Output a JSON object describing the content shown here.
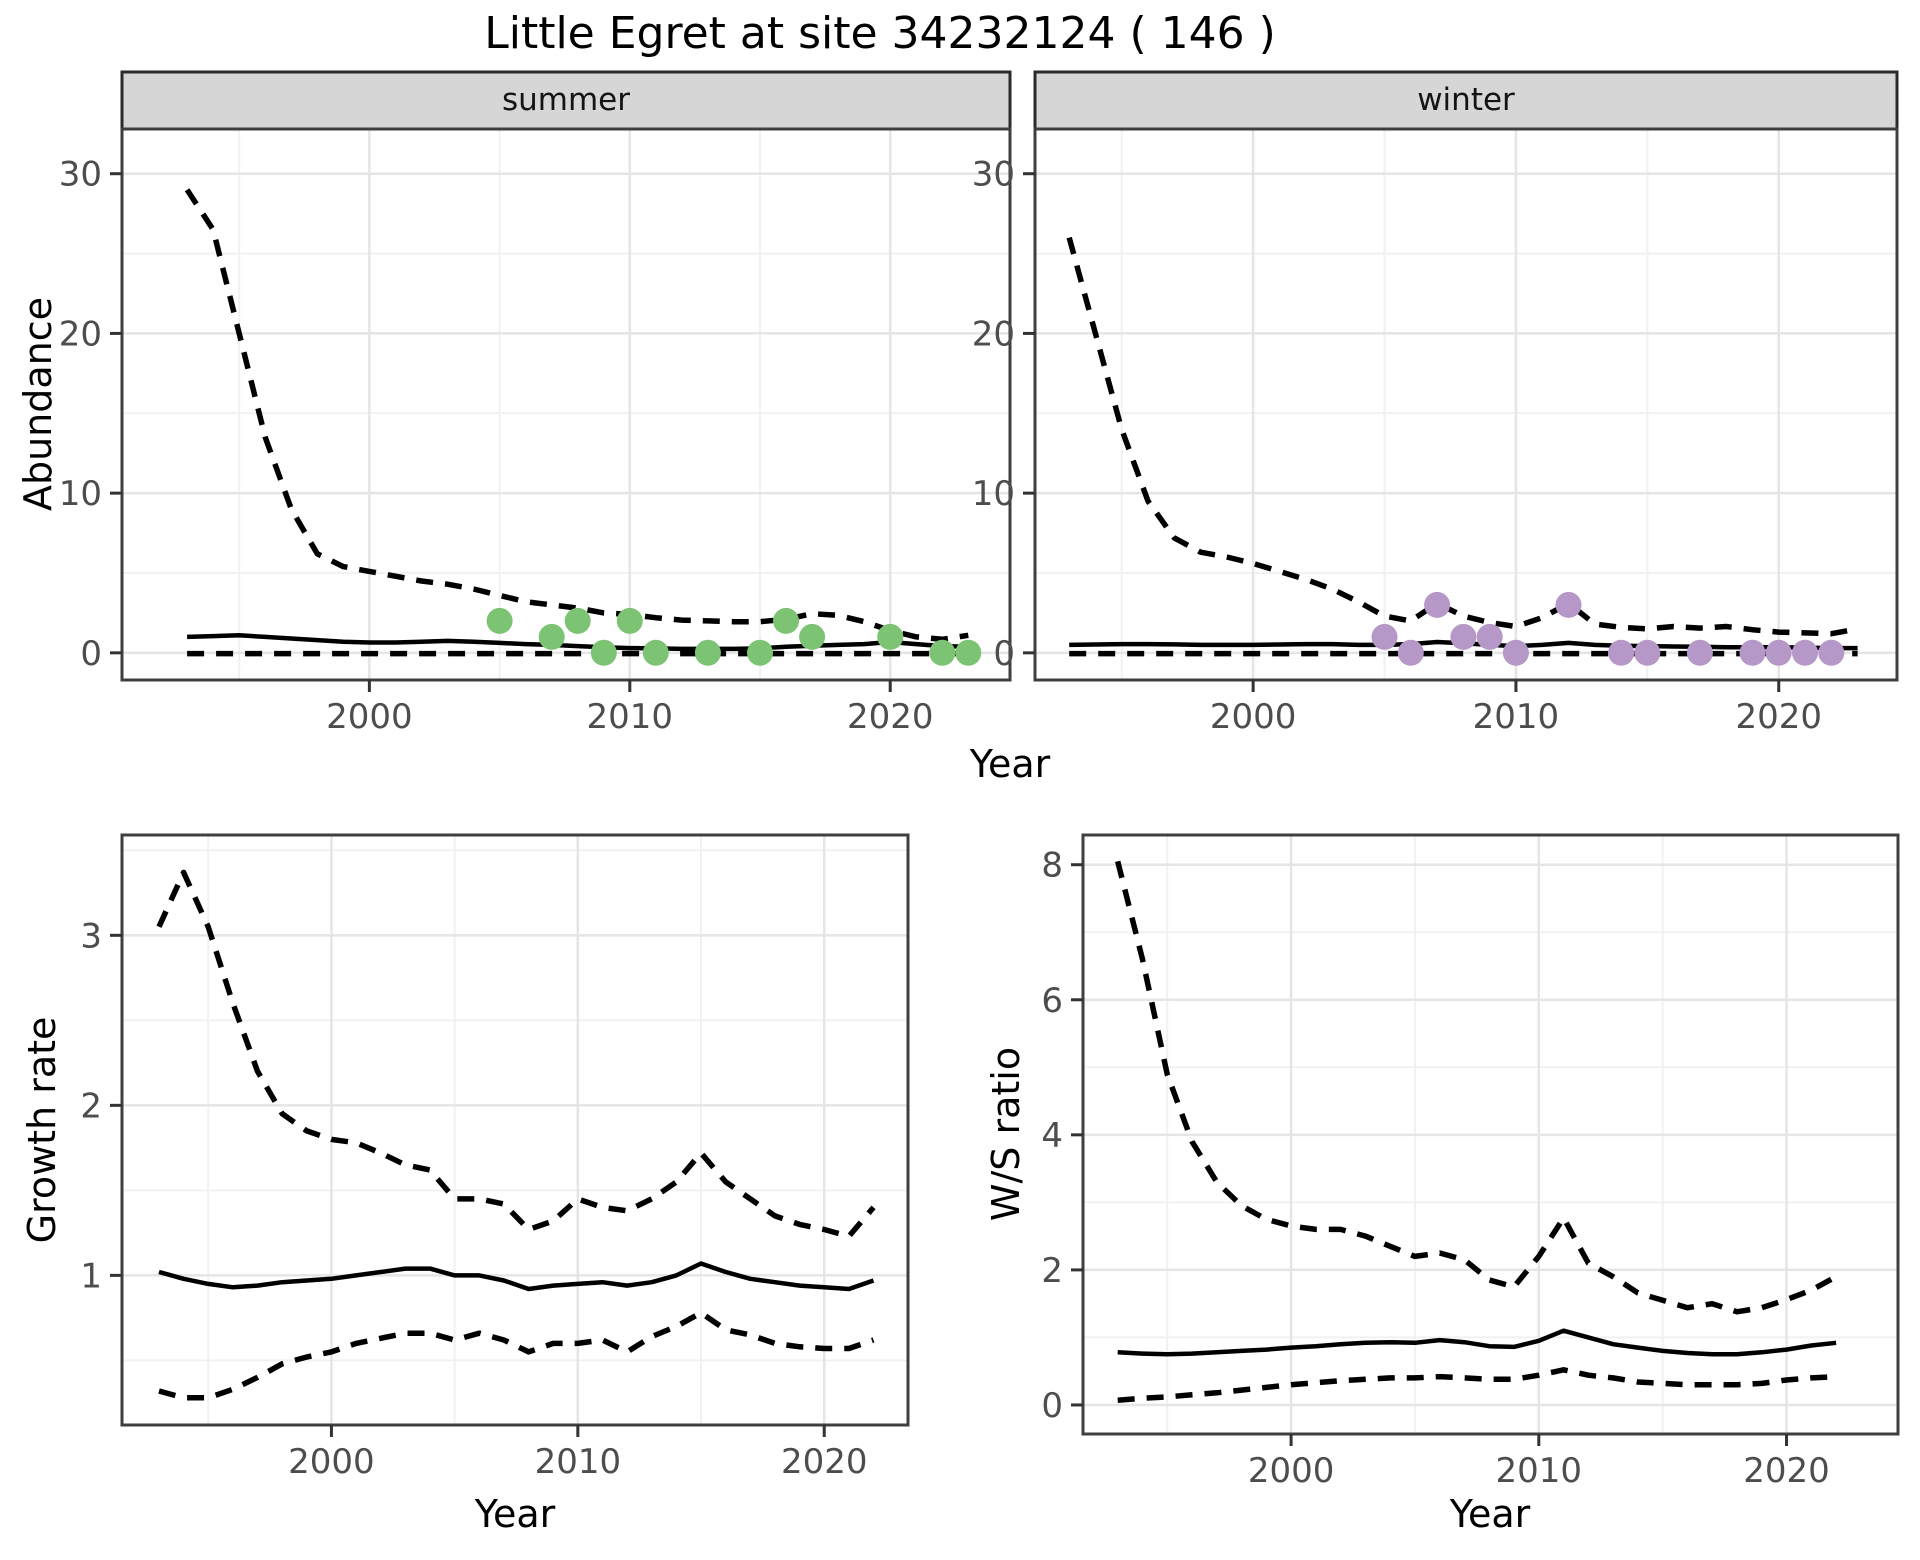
{
  "title": "Little Egret at site 34232124 ( 146 )",
  "strips": {
    "summer": "summer",
    "winter": "winter"
  },
  "axis_titles": {
    "x": "Year",
    "y_abundance": "Abundance",
    "y_growth": "Growth rate",
    "y_ratio": "W/S ratio"
  },
  "colors": {
    "summer_point": "#7cc474",
    "winter_point": "#b597c8",
    "line": "#000000",
    "strip_bg": "#d6d6d6",
    "strip_border": "#2b2b2b",
    "panel_border": "#3f3f3f",
    "grid_major": "#e5e5e5",
    "grid_minor": "#f1f1f1",
    "axis_text": "#4d4d4d",
    "tick_mark": "#333333"
  },
  "chart_data": [
    {
      "type": "line",
      "panel": "summer",
      "facet_label": "summer",
      "xlabel": "Year",
      "ylabel": "Abundance",
      "xlim": [
        1990.5,
        2024.6
      ],
      "ylim": [
        -1.7,
        32.8
      ],
      "x_major": [
        2000,
        2010,
        2020
      ],
      "x_minor": [
        1995,
        2005,
        2015
      ],
      "y_major": [
        0,
        10,
        20,
        30
      ],
      "y_minor": [
        5,
        15,
        25
      ],
      "years": [
        1993,
        1994,
        1995,
        1996,
        1997,
        1998,
        1999,
        2000,
        2001,
        2002,
        2003,
        2004,
        2005,
        2006,
        2007,
        2008,
        2009,
        2010,
        2011,
        2012,
        2013,
        2014,
        2015,
        2016,
        2017,
        2018,
        2019,
        2020,
        2021,
        2022,
        2023
      ],
      "series": [
        {
          "name": "upper_ci",
          "style": "dashed",
          "values": [
            29,
            26.5,
            20,
            13.5,
            9,
            6.2,
            5.4,
            5.1,
            4.8,
            4.5,
            4.3,
            4.0,
            3.6,
            3.2,
            3.0,
            2.8,
            2.5,
            2.4,
            2.2,
            2.05,
            2.0,
            1.95,
            1.95,
            2.1,
            2.45,
            2.35,
            1.95,
            1.4,
            1.0,
            0.85,
            1.1
          ]
        },
        {
          "name": "mean",
          "style": "solid",
          "values": [
            1.0,
            1.05,
            1.1,
            1.0,
            0.9,
            0.8,
            0.7,
            0.65,
            0.65,
            0.7,
            0.75,
            0.7,
            0.62,
            0.55,
            0.5,
            0.42,
            0.35,
            0.3,
            0.28,
            0.25,
            0.25,
            0.25,
            0.28,
            0.38,
            0.45,
            0.5,
            0.55,
            0.68,
            0.55,
            0.42,
            0.38
          ]
        },
        {
          "name": "lower_ci",
          "style": "dashed",
          "values": [
            -0.05,
            -0.05,
            -0.05,
            -0.05,
            -0.05,
            -0.05,
            -0.05,
            -0.05,
            -0.05,
            -0.05,
            -0.05,
            -0.05,
            -0.05,
            -0.05,
            -0.05,
            -0.05,
            -0.05,
            -0.05,
            -0.05,
            -0.05,
            -0.05,
            -0.05,
            -0.05,
            -0.05,
            -0.05,
            -0.05,
            -0.05,
            -0.05,
            -0.05,
            -0.05,
            -0.05
          ]
        }
      ],
      "points": {
        "color_key": "summer_point",
        "years": [
          2005,
          2007,
          2008,
          2009,
          2010,
          2011,
          2013,
          2015,
          2016,
          2017,
          2020,
          2022,
          2023
        ],
        "values": [
          2,
          1,
          2,
          0,
          2,
          0,
          0,
          0,
          2,
          1,
          1,
          0,
          0
        ]
      }
    },
    {
      "type": "line",
      "panel": "winter",
      "facet_label": "winter",
      "xlabel": "Year",
      "ylabel": "Abundance",
      "xlim": [
        1991.7,
        2024.5
      ],
      "ylim": [
        -1.7,
        32.8
      ],
      "x_major": [
        2000,
        2010,
        2020
      ],
      "x_minor": [
        1995,
        2005,
        2015
      ],
      "y_major": [
        0,
        10,
        20,
        30
      ],
      "y_minor": [
        5,
        15,
        25
      ],
      "years": [
        1993,
        1994,
        1995,
        1996,
        1997,
        1998,
        1999,
        2000,
        2001,
        2002,
        2003,
        2004,
        2005,
        2006,
        2007,
        2008,
        2009,
        2010,
        2011,
        2012,
        2013,
        2014,
        2015,
        2016,
        2017,
        2018,
        2019,
        2020,
        2021,
        2022,
        2023
      ],
      "series": [
        {
          "name": "upper_ci",
          "style": "dashed",
          "values": [
            26,
            20,
            14,
            9.5,
            7.2,
            6.3,
            6.0,
            5.6,
            5.1,
            4.6,
            4.0,
            3.2,
            2.3,
            2.0,
            3.1,
            2.3,
            1.9,
            1.65,
            2.2,
            3.1,
            1.8,
            1.6,
            1.5,
            1.65,
            1.55,
            1.65,
            1.45,
            1.3,
            1.25,
            1.2,
            1.5
          ]
        },
        {
          "name": "mean",
          "style": "solid",
          "values": [
            0.5,
            0.52,
            0.55,
            0.55,
            0.53,
            0.5,
            0.5,
            0.5,
            0.52,
            0.55,
            0.55,
            0.5,
            0.5,
            0.55,
            0.68,
            0.6,
            0.5,
            0.42,
            0.5,
            0.62,
            0.5,
            0.45,
            0.42,
            0.4,
            0.38,
            0.35,
            0.35,
            0.35,
            0.33,
            0.3,
            0.3
          ]
        },
        {
          "name": "lower_ci",
          "style": "dashed",
          "values": [
            -0.05,
            -0.05,
            -0.05,
            -0.05,
            -0.05,
            -0.05,
            -0.05,
            -0.05,
            -0.05,
            -0.05,
            -0.05,
            -0.05,
            -0.05,
            -0.05,
            -0.05,
            -0.05,
            -0.05,
            -0.05,
            -0.05,
            -0.05,
            -0.05,
            -0.05,
            -0.05,
            -0.05,
            -0.05,
            -0.05,
            -0.05,
            -0.05,
            -0.05,
            -0.05,
            -0.05
          ]
        }
      ],
      "points": {
        "color_key": "winter_point",
        "years": [
          2005,
          2006,
          2007,
          2008,
          2009,
          2010,
          2012,
          2014,
          2015,
          2017,
          2019,
          2020,
          2021,
          2022
        ],
        "values": [
          1,
          0,
          3,
          1,
          1,
          0,
          3,
          0,
          0,
          0,
          0,
          0,
          0,
          0
        ]
      }
    },
    {
      "type": "line",
      "panel": "growth",
      "facet_label": null,
      "xlabel": "Year",
      "ylabel": "Growth rate",
      "xlim": [
        1991.5,
        2023.4
      ],
      "ylim": [
        0.12,
        3.59
      ],
      "x_major": [
        2000,
        2010,
        2020
      ],
      "x_minor": [
        1995,
        2005,
        2015
      ],
      "y_major": [
        1,
        2,
        3
      ],
      "y_minor": [
        0.5,
        1.5,
        2.5,
        3.5
      ],
      "years": [
        1993,
        1994,
        1995,
        1996,
        1997,
        1998,
        1999,
        2000,
        2001,
        2002,
        2003,
        2004,
        2005,
        2006,
        2007,
        2008,
        2009,
        2010,
        2011,
        2012,
        2013,
        2014,
        2015,
        2016,
        2017,
        2018,
        2019,
        2020,
        2021,
        2022
      ],
      "series": [
        {
          "name": "upper_ci",
          "style": "dashed",
          "values": [
            3.05,
            3.37,
            3.05,
            2.6,
            2.2,
            1.95,
            1.85,
            1.8,
            1.78,
            1.72,
            1.65,
            1.62,
            1.45,
            1.45,
            1.42,
            1.27,
            1.32,
            1.45,
            1.4,
            1.38,
            1.45,
            1.55,
            1.72,
            1.55,
            1.45,
            1.35,
            1.3,
            1.27,
            1.23,
            1.4
          ]
        },
        {
          "name": "mean",
          "style": "solid",
          "values": [
            1.02,
            0.98,
            0.95,
            0.93,
            0.94,
            0.96,
            0.97,
            0.98,
            1.0,
            1.02,
            1.04,
            1.04,
            1.0,
            1.0,
            0.97,
            0.92,
            0.94,
            0.95,
            0.96,
            0.94,
            0.96,
            1.0,
            1.07,
            1.02,
            0.98,
            0.96,
            0.94,
            0.93,
            0.92,
            0.97
          ]
        },
        {
          "name": "lower_ci",
          "style": "dashed",
          "values": [
            0.32,
            0.28,
            0.28,
            0.33,
            0.4,
            0.48,
            0.52,
            0.55,
            0.6,
            0.63,
            0.66,
            0.66,
            0.62,
            0.66,
            0.62,
            0.55,
            0.6,
            0.6,
            0.62,
            0.55,
            0.64,
            0.7,
            0.78,
            0.68,
            0.65,
            0.6,
            0.58,
            0.57,
            0.57,
            0.62
          ]
        }
      ],
      "points": null
    },
    {
      "type": "line",
      "panel": "ratio",
      "facet_label": null,
      "xlabel": "Year",
      "ylabel": "W/S ratio",
      "xlim": [
        1991.6,
        2024.5
      ],
      "ylim": [
        -0.43,
        8.44
      ],
      "x_major": [
        2000,
        2010,
        2020
      ],
      "x_minor": [
        1995,
        2005,
        2015
      ],
      "y_major": [
        0,
        2,
        4,
        6,
        8
      ],
      "y_minor": [
        1,
        3,
        5,
        7
      ],
      "years": [
        1993,
        1994,
        1995,
        1996,
        1997,
        1998,
        1999,
        2000,
        2001,
        2002,
        2003,
        2004,
        2005,
        2006,
        2007,
        2008,
        2009,
        2010,
        2011,
        2012,
        2013,
        2014,
        2015,
        2016,
        2017,
        2018,
        2019,
        2020,
        2021,
        2022
      ],
      "series": [
        {
          "name": "upper_ci",
          "style": "dashed",
          "values": [
            8.05,
            6.6,
            4.9,
            3.9,
            3.3,
            2.95,
            2.75,
            2.65,
            2.6,
            2.6,
            2.5,
            2.35,
            2.2,
            2.25,
            2.15,
            1.85,
            1.75,
            2.2,
            2.77,
            2.1,
            1.9,
            1.66,
            1.55,
            1.44,
            1.5,
            1.38,
            1.44,
            1.56,
            1.7,
            1.9
          ]
        },
        {
          "name": "mean",
          "style": "solid",
          "values": [
            0.78,
            0.76,
            0.75,
            0.76,
            0.78,
            0.8,
            0.82,
            0.85,
            0.87,
            0.9,
            0.92,
            0.93,
            0.92,
            0.96,
            0.93,
            0.87,
            0.86,
            0.95,
            1.1,
            1.0,
            0.9,
            0.85,
            0.8,
            0.77,
            0.75,
            0.75,
            0.78,
            0.82,
            0.88,
            0.92
          ]
        },
        {
          "name": "lower_ci",
          "style": "dashed",
          "values": [
            0.07,
            0.1,
            0.12,
            0.15,
            0.18,
            0.22,
            0.26,
            0.3,
            0.33,
            0.36,
            0.38,
            0.4,
            0.4,
            0.42,
            0.4,
            0.38,
            0.38,
            0.44,
            0.52,
            0.44,
            0.4,
            0.34,
            0.32,
            0.3,
            0.3,
            0.3,
            0.32,
            0.37,
            0.4,
            0.42
          ]
        }
      ],
      "points": null
    }
  ]
}
